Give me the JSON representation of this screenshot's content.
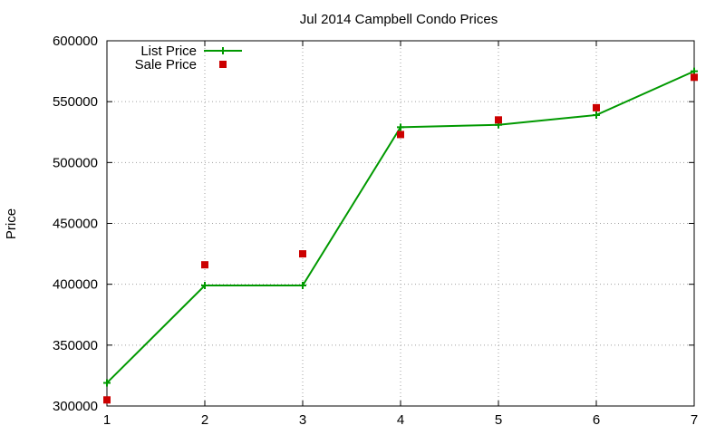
{
  "chart_data": {
    "type": "line",
    "title": "Jul 2014 Campbell Condo Prices",
    "xlabel": "",
    "ylabel": "Price",
    "x": [
      1,
      2,
      3,
      4,
      5,
      6,
      7
    ],
    "xlim": [
      1,
      7
    ],
    "ylim": [
      300000,
      600000
    ],
    "xticks": [
      1,
      2,
      3,
      4,
      5,
      6,
      7
    ],
    "yticks": [
      300000,
      350000,
      400000,
      450000,
      500000,
      550000,
      600000
    ],
    "grid": true,
    "legend_position": "top-left",
    "series": [
      {
        "name": "List Price",
        "style": "line-with-plus-markers",
        "color": "#009900",
        "values": [
          319000,
          399000,
          399000,
          529000,
          531000,
          539000,
          575000
        ]
      },
      {
        "name": "Sale Price",
        "style": "square-markers",
        "color": "#cc0000",
        "values": [
          305000,
          416000,
          425000,
          523000,
          535000,
          545000,
          570000
        ]
      }
    ]
  }
}
